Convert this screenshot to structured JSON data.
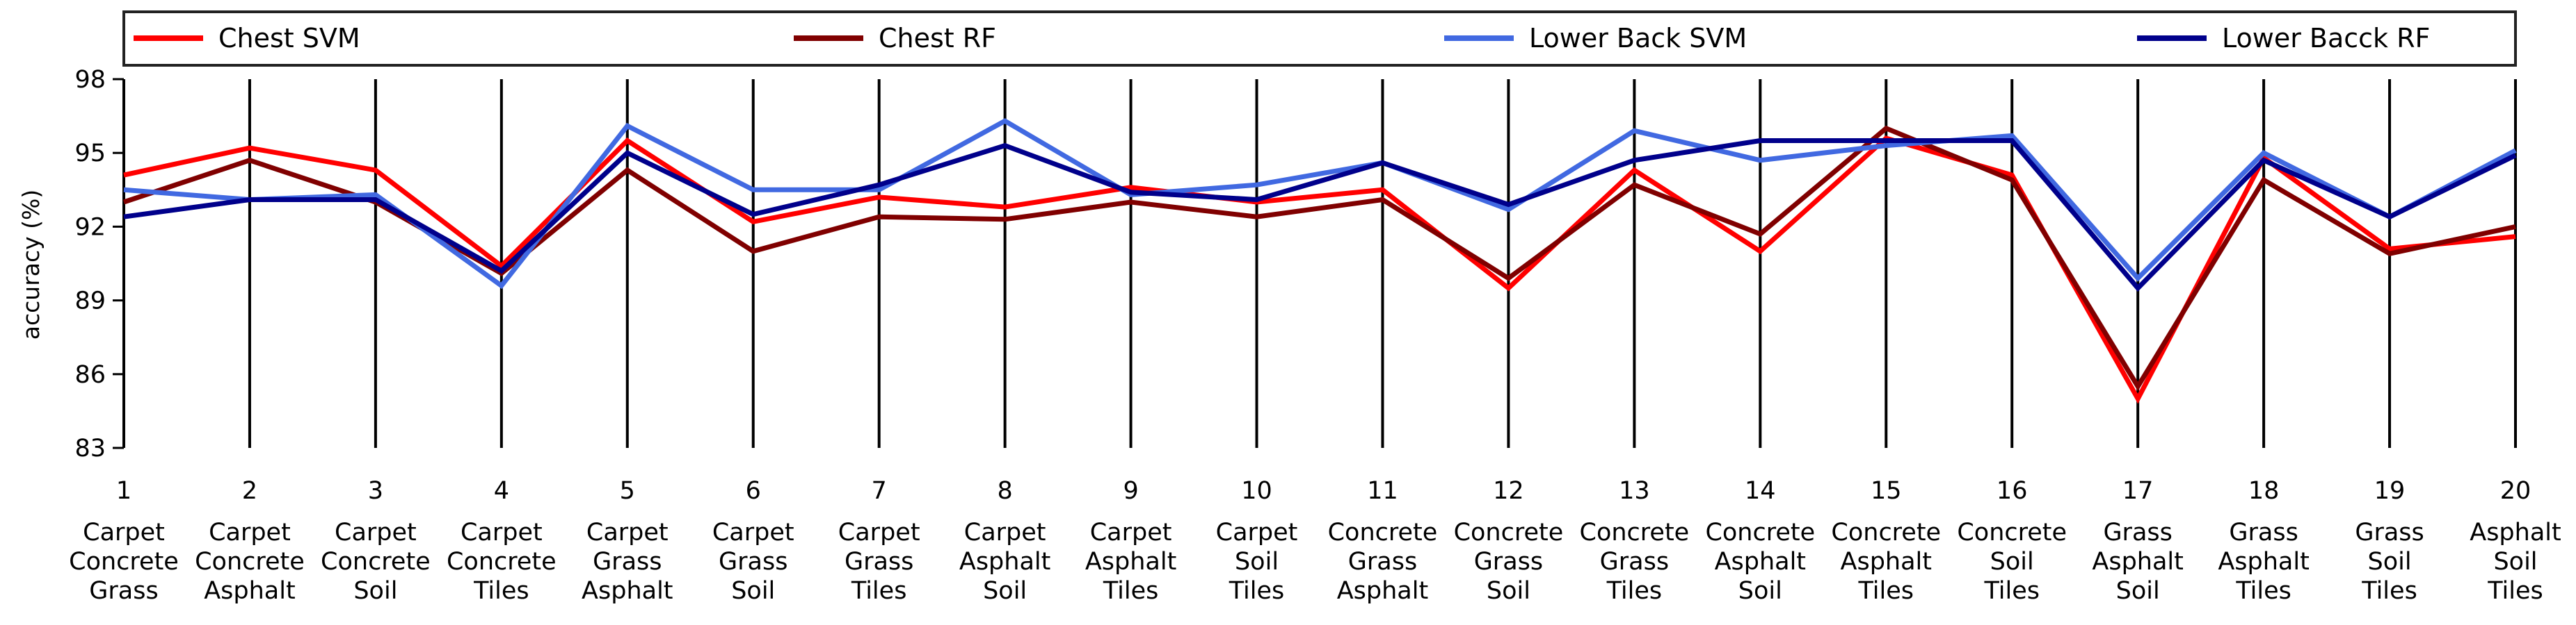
{
  "chart_data": {
    "type": "line",
    "ylabel": "accuracy (%)",
    "ylim": [
      83,
      98
    ],
    "yticks": [
      83,
      86,
      89,
      92,
      95,
      98
    ],
    "x": [
      "1",
      "2",
      "3",
      "4",
      "5",
      "6",
      "7",
      "8",
      "9",
      "10",
      "11",
      "12",
      "13",
      "14",
      "15",
      "16",
      "17",
      "18",
      "19",
      "20"
    ],
    "categories": [
      [
        "Carpet",
        "Concrete",
        "Grass"
      ],
      [
        "Carpet",
        "Concrete",
        "Asphalt"
      ],
      [
        "Carpet",
        "Concrete",
        "Soil"
      ],
      [
        "Carpet",
        "Concrete",
        "Tiles"
      ],
      [
        "Carpet",
        "Grass",
        "Asphalt"
      ],
      [
        "Carpet",
        "Grass",
        "Soil"
      ],
      [
        "Carpet",
        "Grass",
        "Tiles"
      ],
      [
        "Carpet",
        "Asphalt",
        "Soil"
      ],
      [
        "Carpet",
        "Asphalt",
        "Tiles"
      ],
      [
        "Carpet",
        "Soil",
        "Tiles"
      ],
      [
        "Concrete",
        "Grass",
        "Asphalt"
      ],
      [
        "Concrete",
        "Grass",
        "Soil"
      ],
      [
        "Concrete",
        "Grass",
        "Tiles"
      ],
      [
        "Concrete",
        "Asphalt",
        "Soil"
      ],
      [
        "Concrete",
        "Asphalt",
        "Tiles"
      ],
      [
        "Concrete",
        "Soil",
        "Tiles"
      ],
      [
        "Grass",
        "Asphalt",
        "Soil"
      ],
      [
        "Grass",
        "Asphalt",
        "Tiles"
      ],
      [
        "Grass",
        "Soil",
        "Tiles"
      ],
      [
        "Asphalt",
        "Soil",
        "Tiles"
      ]
    ],
    "series": [
      {
        "name": "Chest SVM",
        "color": "#ff0000",
        "values": [
          94.1,
          95.2,
          94.3,
          90.4,
          95.5,
          92.2,
          93.2,
          92.8,
          93.6,
          93.0,
          93.5,
          89.5,
          94.3,
          91.0,
          95.6,
          94.1,
          85.0,
          94.8,
          91.1,
          91.6
        ]
      },
      {
        "name": "Chest RF",
        "color": "#800000",
        "values": [
          93.0,
          94.7,
          93.0,
          90.1,
          94.3,
          91.0,
          92.4,
          92.3,
          93.0,
          92.4,
          93.1,
          89.9,
          93.7,
          91.7,
          96.0,
          93.9,
          85.5,
          93.9,
          90.9,
          92.0
        ]
      },
      {
        "name": "Lower Back SVM",
        "color": "#4169e1",
        "values": [
          93.5,
          93.1,
          93.3,
          89.6,
          96.1,
          93.5,
          93.5,
          96.3,
          93.3,
          93.7,
          94.6,
          92.7,
          95.9,
          94.7,
          95.3,
          95.7,
          89.9,
          95.0,
          92.4,
          95.1
        ]
      },
      {
        "name": "Lower Bacck RF",
        "color": "#00008b",
        "values": [
          92.4,
          93.1,
          93.1,
          90.2,
          95.0,
          92.5,
          93.7,
          95.3,
          93.4,
          93.1,
          94.6,
          92.9,
          94.7,
          95.5,
          95.5,
          95.5,
          89.5,
          94.7,
          92.4,
          94.9
        ]
      }
    ],
    "legend": "top",
    "grid": false
  }
}
